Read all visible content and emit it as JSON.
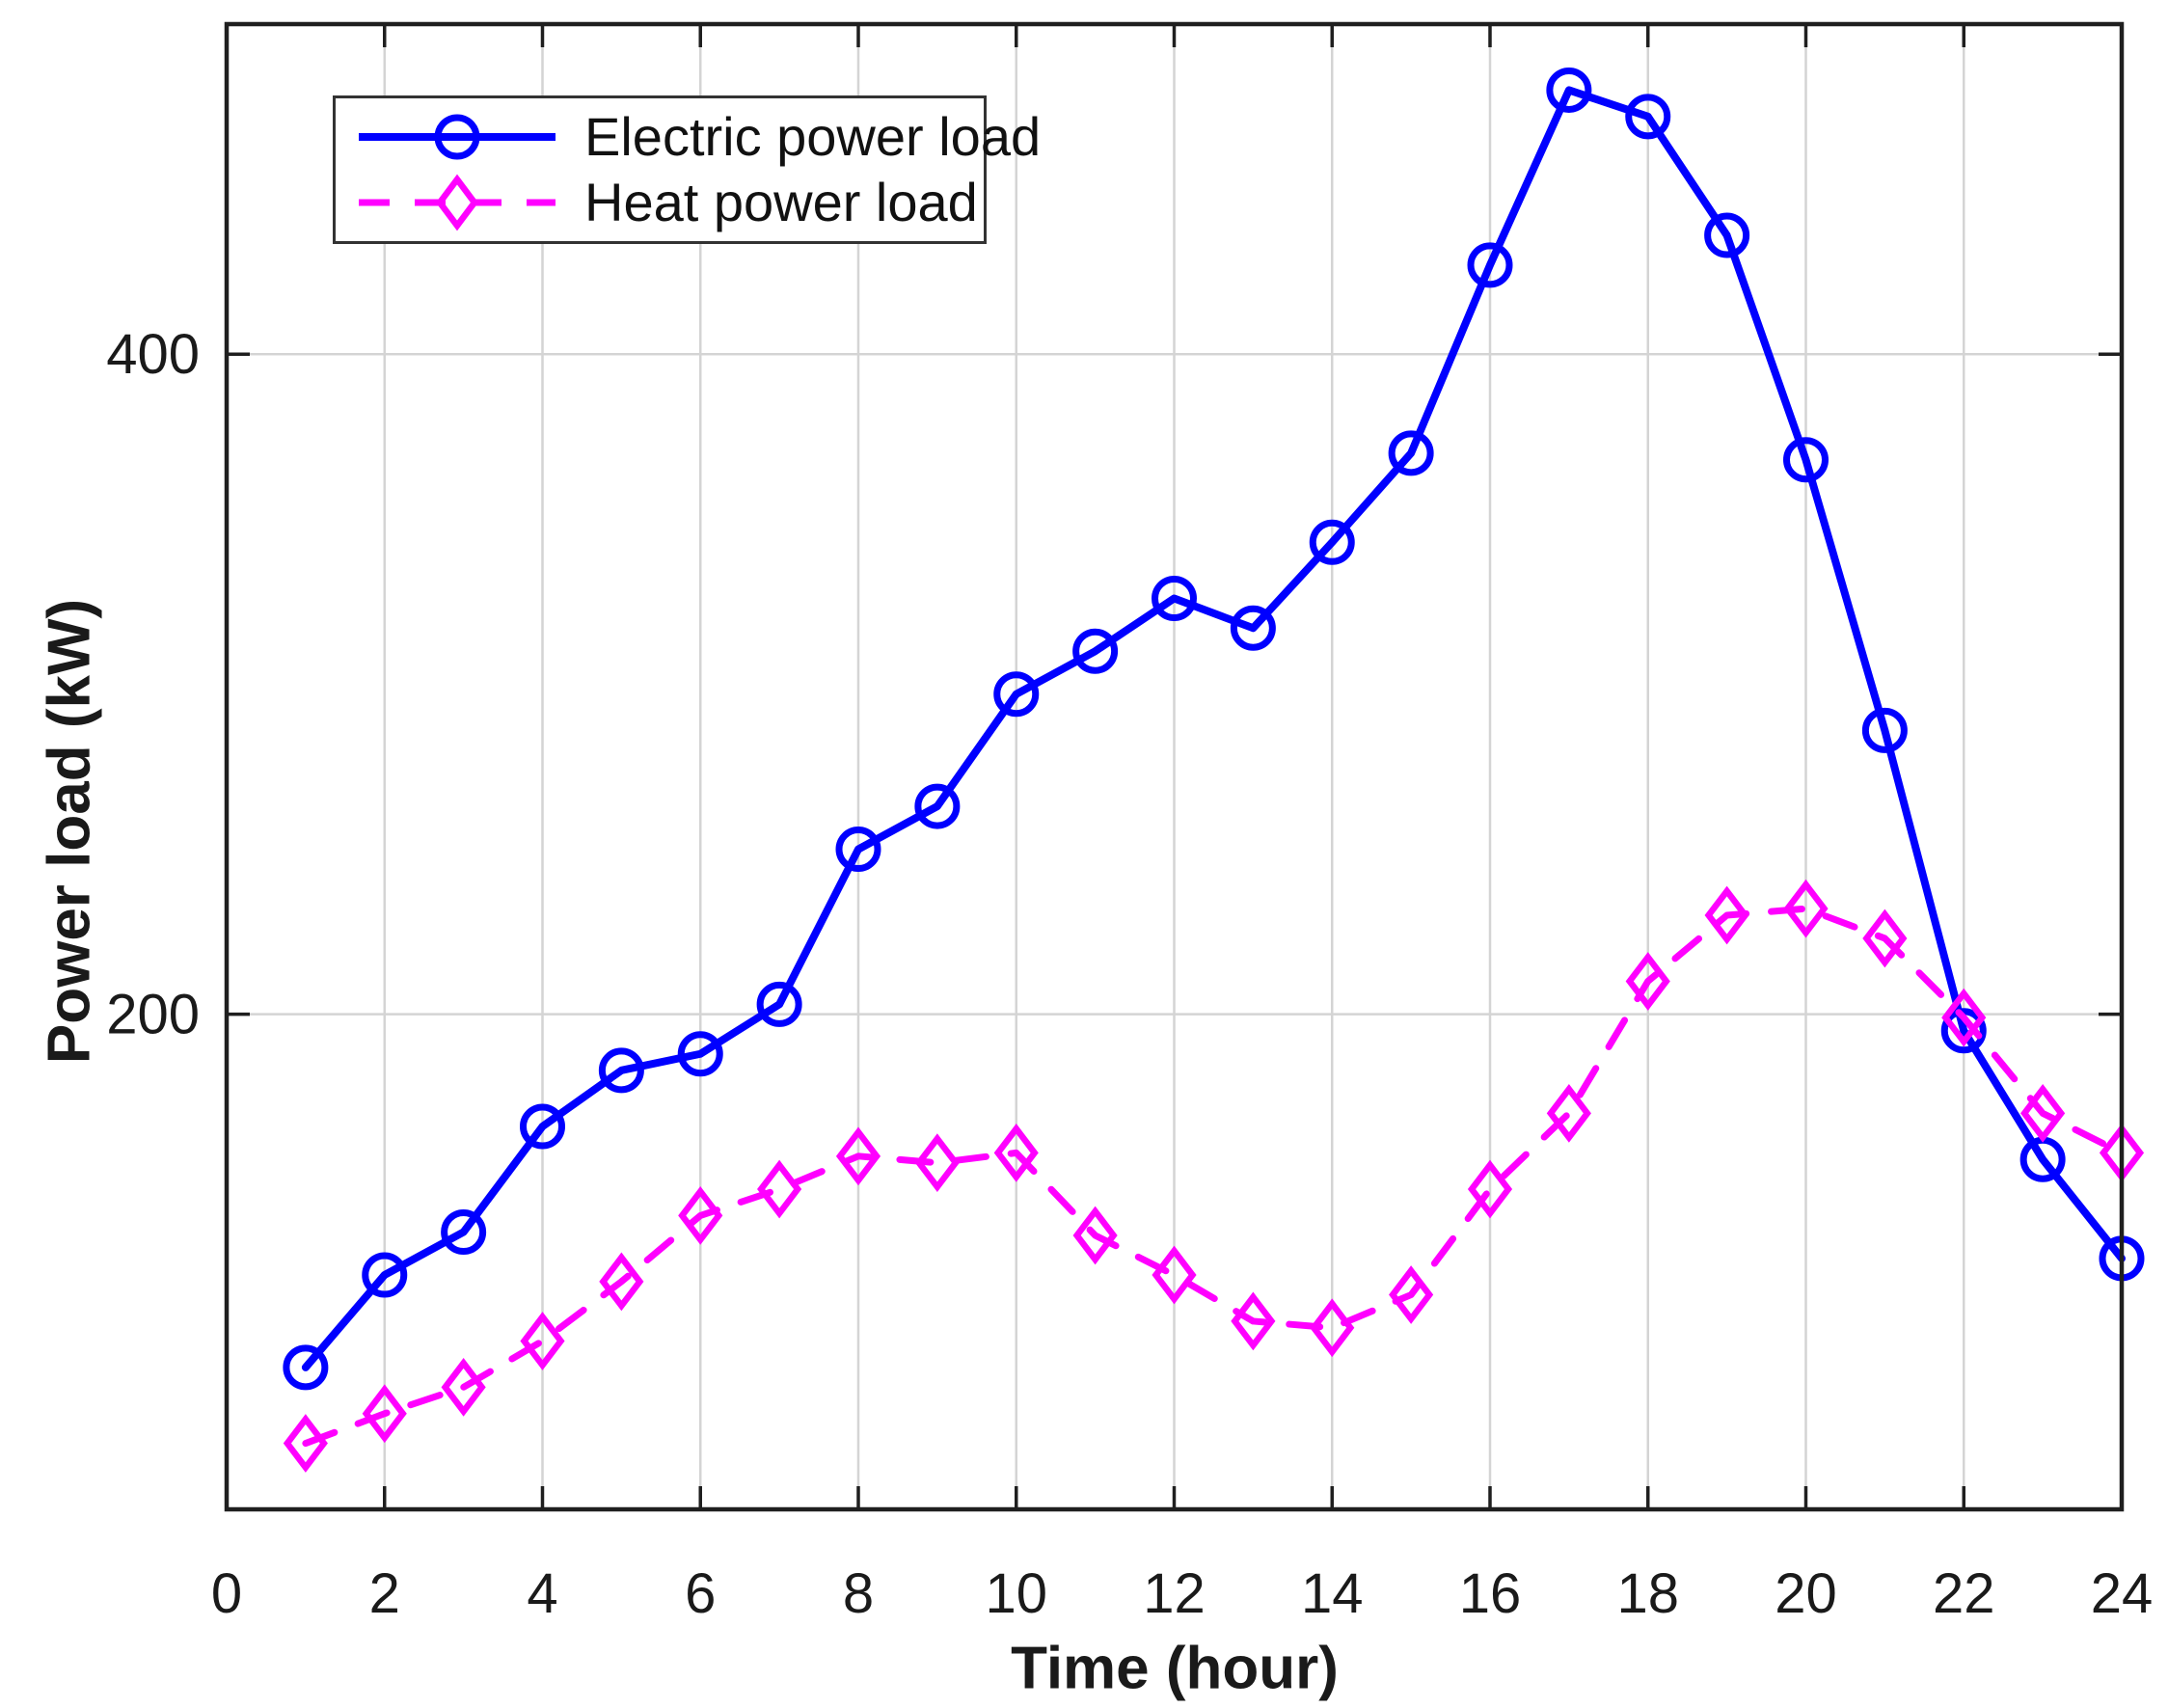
{
  "figure": {
    "xlabel": "Time (hour)",
    "ylabel": "Power load (kW)",
    "legend": {
      "position": "top-left",
      "entries": [
        {
          "label": "Electric power load",
          "color": "#0000ff",
          "line": "solid",
          "marker": "circle"
        },
        {
          "label": "Heat power load",
          "color": "#ff00ff",
          "line": "dashed",
          "marker": "diamond"
        }
      ]
    },
    "colors": {
      "electric": "#0000ff",
      "heat": "#ff00ff",
      "grid": "#d4d4d4",
      "axis": "#1f1f1f",
      "text": "#1a1a1a",
      "background": "#ffffff"
    }
  },
  "chart_data": {
    "type": "line",
    "title": "",
    "xlabel": "Time (hour)",
    "ylabel": "Power load (kW)",
    "x": [
      1,
      2,
      3,
      4,
      5,
      6,
      7,
      8,
      9,
      10,
      11,
      12,
      13,
      14,
      15,
      16,
      17,
      18,
      19,
      20,
      21,
      22,
      23,
      24
    ],
    "series": [
      {
        "name": "Electric power load",
        "color": "#0000ff",
        "style": "solid",
        "marker": "circle",
        "values": [
          93,
          121,
          134,
          166,
          183,
          188,
          203,
          250,
          263,
          297,
          310,
          326,
          317,
          343,
          370,
          427,
          480,
          472,
          436,
          368,
          286,
          195,
          156,
          126
        ]
      },
      {
        "name": "Heat power load",
        "color": "#ff00ff",
        "style": "dashed",
        "marker": "diamond",
        "values": [
          70,
          79,
          87,
          101,
          119,
          139,
          147,
          157,
          155,
          158,
          133,
          121,
          107,
          105,
          115,
          147,
          170,
          210,
          230,
          232,
          223,
          199,
          170,
          158
        ]
      }
    ],
    "xlim": [
      0,
      24
    ],
    "ylim": [
      50,
      500
    ],
    "x_ticks": [
      0,
      2,
      4,
      6,
      8,
      10,
      12,
      14,
      16,
      18,
      20,
      22,
      24
    ],
    "y_ticks": [
      200,
      400
    ],
    "grid": true,
    "legend_position": "top-left"
  }
}
